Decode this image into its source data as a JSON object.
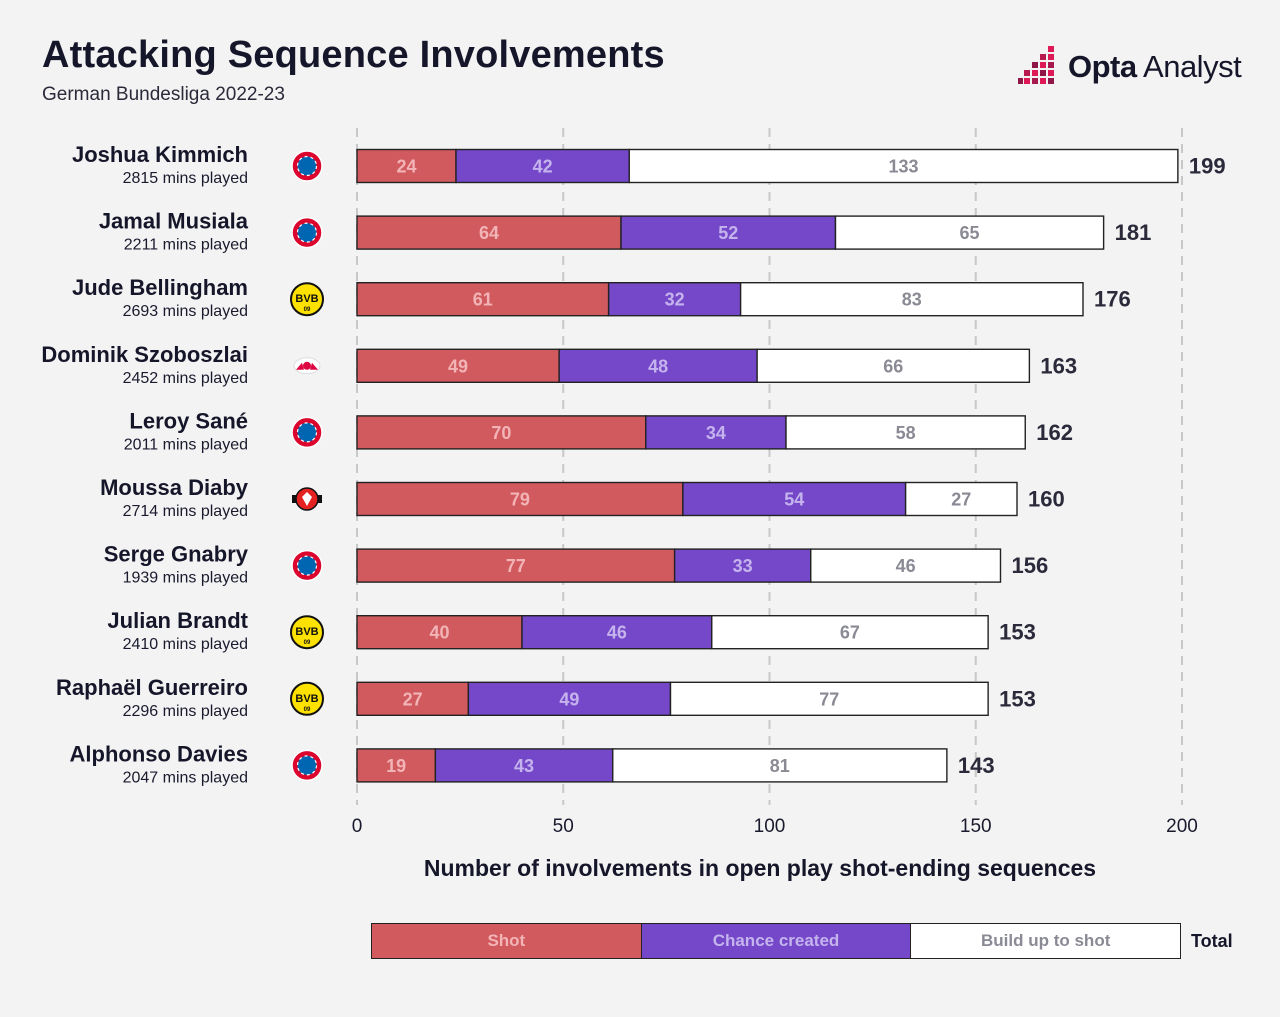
{
  "header": {
    "title": "Attacking Sequence Involvements",
    "subtitle": "German Bundesliga 2022-23",
    "logo_bold": "Opta",
    "logo_light": " Analyst"
  },
  "colors": {
    "shot": "#d15a5e",
    "chance": "#7448c8",
    "build": "#ffffff",
    "shot_label": "#f2b4b6",
    "chance_label": "#c5b3ee",
    "build_label": "#8a8a95",
    "bayern": "#dc052d",
    "dortmund": "#fde100",
    "leipzig": "#dd0741",
    "leverkusen": "#e32221"
  },
  "chart_data": {
    "type": "bar",
    "orientation": "horizontal",
    "stacked": true,
    "title": "Attacking Sequence Involvements",
    "subtitle": "German Bundesliga 2022-23",
    "xlabel": "Number of involvements in open play shot-ending sequences",
    "xlim": [
      0,
      200
    ],
    "xticks": [
      0,
      50,
      100,
      150,
      200
    ],
    "grid": true,
    "categories": [
      "Joshua Kimmich",
      "Jamal Musiala",
      "Jude Bellingham",
      "Dominik Szoboszlai",
      "Leroy Sané",
      "Moussa Diaby",
      "Serge Gnabry",
      "Julian Brandt",
      "Raphaël Guerreiro",
      "Alphonso Davies"
    ],
    "minutes": [
      "2815 mins played",
      "2211 mins played",
      "2693 mins played",
      "2452 mins played",
      "2011 mins played",
      "2714 mins played",
      "1939 mins played",
      "2410 mins played",
      "2296 mins played",
      "2047 mins played"
    ],
    "clubs": [
      "bayern",
      "bayern",
      "dortmund",
      "leipzig",
      "bayern",
      "leverkusen",
      "bayern",
      "dortmund",
      "dortmund",
      "bayern"
    ],
    "series": [
      {
        "name": "Shot",
        "values": [
          24,
          64,
          61,
          49,
          70,
          79,
          77,
          40,
          27,
          19
        ]
      },
      {
        "name": "Chance created",
        "values": [
          42,
          52,
          32,
          48,
          34,
          54,
          33,
          46,
          49,
          43
        ]
      },
      {
        "name": "Build up to shot",
        "values": [
          133,
          65,
          83,
          66,
          58,
          27,
          46,
          67,
          77,
          81
        ]
      }
    ],
    "totals": [
      199,
      181,
      176,
      163,
      162,
      160,
      156,
      153,
      153,
      143
    ],
    "legend": {
      "shot": "Shot",
      "chance": "Chance created",
      "build": "Build up to shot",
      "total": "Total"
    },
    "legend_position": "bottom"
  }
}
